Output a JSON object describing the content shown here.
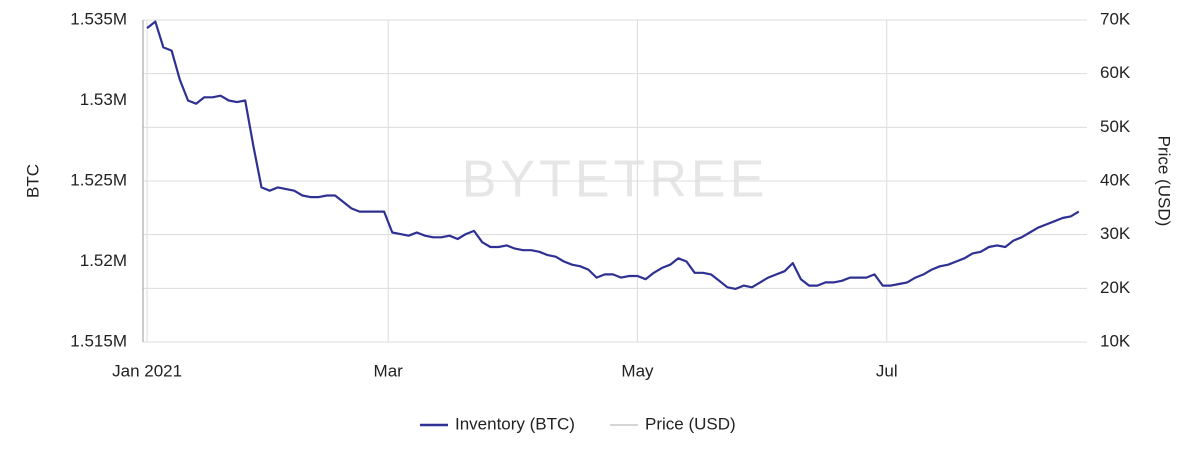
{
  "chart_data": {
    "type": "line",
    "watermark": "BYTETREE",
    "ylabel": "BTC",
    "y2label": "Price (USD)",
    "x": [
      0,
      2,
      4,
      6,
      8,
      10,
      12,
      14,
      16,
      18,
      20,
      22,
      24,
      26,
      28,
      30,
      32,
      34,
      36,
      38,
      40,
      42,
      44,
      46,
      48,
      50,
      52,
      54,
      56,
      58,
      60,
      62,
      64,
      66,
      68,
      70,
      72,
      74,
      76,
      78,
      80,
      82,
      84,
      86,
      88,
      90,
      92,
      94,
      96,
      98,
      100,
      102,
      104,
      106,
      108,
      110,
      112,
      114,
      116,
      118,
      120,
      122,
      124,
      126,
      128,
      130,
      132,
      134,
      136,
      138,
      140,
      142,
      144,
      146,
      148,
      150,
      152,
      154,
      156,
      158,
      160,
      162,
      164,
      166,
      168,
      170,
      172,
      174,
      176,
      178,
      180,
      182,
      184,
      186,
      188,
      190,
      192,
      194,
      196,
      198,
      200,
      202,
      204,
      206,
      208,
      210,
      212,
      214,
      216,
      218,
      220,
      222,
      224,
      226,
      228
    ],
    "xlim": [
      -1,
      230
    ],
    "xticks": [
      {
        "value": 0,
        "label": "Jan 2021"
      },
      {
        "value": 59,
        "label": "Mar"
      },
      {
        "value": 120,
        "label": "May"
      },
      {
        "value": 181,
        "label": "Jul"
      }
    ],
    "ylim": [
      1515000,
      1535000
    ],
    "yticks": [
      {
        "value": 1515000,
        "label": "1.515M"
      },
      {
        "value": 1520000,
        "label": "1.52M"
      },
      {
        "value": 1525000,
        "label": "1.525M"
      },
      {
        "value": 1530000,
        "label": "1.53M"
      },
      {
        "value": 1535000,
        "label": "1.535M"
      }
    ],
    "y2lim": [
      10000,
      70000
    ],
    "y2ticks": [
      {
        "value": 10000,
        "label": "10K"
      },
      {
        "value": 20000,
        "label": "20K"
      },
      {
        "value": 30000,
        "label": "30K"
      },
      {
        "value": 40000,
        "label": "40K"
      },
      {
        "value": 50000,
        "label": "50K"
      },
      {
        "value": 60000,
        "label": "60K"
      },
      {
        "value": 70000,
        "label": "70K"
      }
    ],
    "grid": true,
    "legend": "bottom",
    "series": [
      {
        "name": "Inventory (BTC)",
        "color": "#2e3192",
        "values": [
          1534500,
          1534900,
          1533300,
          1533100,
          1531300,
          1530000,
          1529800,
          1530200,
          1530200,
          1530300,
          1530000,
          1529900,
          1530000,
          1527200,
          1524600,
          1524400,
          1524600,
          1524500,
          1524400,
          1524100,
          1524000,
          1524000,
          1524100,
          1524100,
          1523700,
          1523300,
          1523100,
          1523100,
          1523100,
          1523100,
          1521800,
          1521700,
          1521600,
          1521800,
          1521600,
          1521500,
          1521500,
          1521600,
          1521400,
          1521700,
          1521900,
          1521200,
          1520900,
          1520900,
          1521000,
          1520800,
          1520700,
          1520700,
          1520600,
          1520400,
          1520300,
          1520000,
          1519800,
          1519700,
          1519500,
          1519000,
          1519200,
          1519200,
          1519000,
          1519100,
          1519100,
          1518900,
          1519300,
          1519600,
          1519800,
          1520200,
          1520000,
          1519300,
          1519300,
          1519200,
          1518800,
          1518400,
          1518300,
          1518500,
          1518400,
          1518700,
          1519000,
          1519200,
          1519400,
          1519900,
          1518900,
          1518500,
          1518500,
          1518700,
          1518700,
          1518800,
          1519000,
          1519000,
          1519000,
          1519200,
          1518500,
          1518500,
          1518600,
          1518700,
          1519000,
          1519200,
          1519500,
          1519700,
          1519800,
          1520000,
          1520200,
          1520500,
          1520600,
          1520900,
          1521000,
          1520900,
          1521300,
          1521500,
          1521800,
          1522100,
          1522300,
          1522500,
          1522700,
          1522800,
          1523100
        ]
      },
      {
        "name": "Price (USD)",
        "color": "#aaaaaa",
        "axis": "y2",
        "hidden": true
      }
    ]
  }
}
